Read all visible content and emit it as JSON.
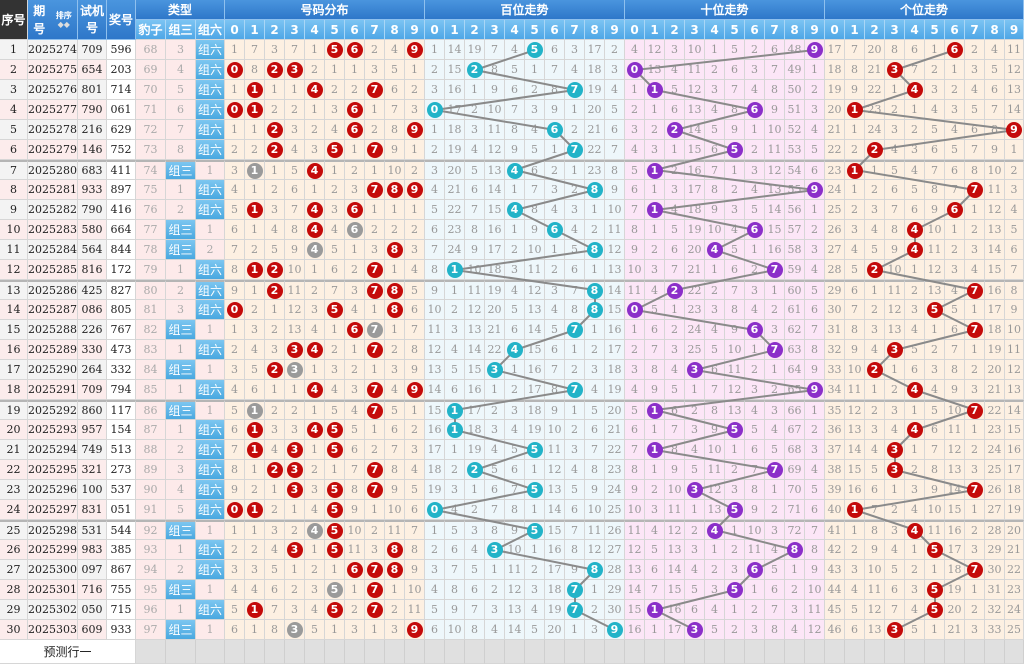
{
  "header": {
    "seq": "序号",
    "issue_a": "期",
    "issue_b": "号",
    "sort": "排序",
    "test_a": "试机",
    "test_b": "号",
    "draw": "奖号",
    "type": "类型",
    "type_cols": [
      "豹子",
      "组三",
      "组六"
    ],
    "dist": "号码分布",
    "hundreds": "百位走势",
    "tens": "十位走势",
    "units": "个位走势",
    "digits": [
      "0",
      "1",
      "2",
      "3",
      "4",
      "5",
      "6",
      "7",
      "8",
      "9"
    ]
  },
  "type_labels": {
    "zusan": "组三",
    "zuliu": "组六"
  },
  "rows": [
    {
      "seq": "1",
      "issue": "2025274",
      "test": "709",
      "draw": "596"
    },
    {
      "seq": "2",
      "issue": "2025275",
      "test": "654",
      "draw": "203"
    },
    {
      "seq": "3",
      "issue": "2025276",
      "test": "801",
      "draw": "714"
    },
    {
      "seq": "4",
      "issue": "2025277",
      "test": "790",
      "draw": "061"
    },
    {
      "seq": "5",
      "issue": "2025278",
      "test": "216",
      "draw": "629"
    },
    {
      "seq": "6",
      "issue": "2025279",
      "test": "146",
      "draw": "752"
    },
    {
      "seq": "7",
      "issue": "2025280",
      "test": "683",
      "draw": "411"
    },
    {
      "seq": "8",
      "issue": "2025281",
      "test": "933",
      "draw": "897"
    },
    {
      "seq": "9",
      "issue": "2025282",
      "test": "790",
      "draw": "416"
    },
    {
      "seq": "10",
      "issue": "2025283",
      "test": "580",
      "draw": "664"
    },
    {
      "seq": "11",
      "issue": "2025284",
      "test": "564",
      "draw": "844"
    },
    {
      "seq": "12",
      "issue": "2025285",
      "test": "816",
      "draw": "172"
    },
    {
      "seq": "13",
      "issue": "2025286",
      "test": "425",
      "draw": "827"
    },
    {
      "seq": "14",
      "issue": "2025287",
      "test": "086",
      "draw": "805"
    },
    {
      "seq": "15",
      "issue": "2025288",
      "test": "226",
      "draw": "767"
    },
    {
      "seq": "16",
      "issue": "2025289",
      "test": "330",
      "draw": "473"
    },
    {
      "seq": "17",
      "issue": "2025290",
      "test": "264",
      "draw": "332"
    },
    {
      "seq": "18",
      "issue": "2025291",
      "test": "709",
      "draw": "794"
    },
    {
      "seq": "19",
      "issue": "2025292",
      "test": "860",
      "draw": "117"
    },
    {
      "seq": "20",
      "issue": "2025293",
      "test": "957",
      "draw": "154"
    },
    {
      "seq": "21",
      "issue": "2025294",
      "test": "749",
      "draw": "513"
    },
    {
      "seq": "22",
      "issue": "2025295",
      "test": "321",
      "draw": "273"
    },
    {
      "seq": "23",
      "issue": "2025296",
      "test": "100",
      "draw": "537"
    },
    {
      "seq": "24",
      "issue": "2025297",
      "test": "831",
      "draw": "051"
    },
    {
      "seq": "25",
      "issue": "2025298",
      "test": "531",
      "draw": "544"
    },
    {
      "seq": "26",
      "issue": "2025299",
      "test": "983",
      "draw": "385"
    },
    {
      "seq": "27",
      "issue": "2025300",
      "test": "097",
      "draw": "867"
    },
    {
      "seq": "28",
      "issue": "2025301",
      "test": "716",
      "draw": "755"
    },
    {
      "seq": "29",
      "issue": "2025302",
      "test": "050",
      "draw": "715"
    },
    {
      "seq": "30",
      "issue": "2025303",
      "test": "609",
      "draw": "933"
    }
  ],
  "first_row_miss": {
    "baozi": 68,
    "zusan": 3,
    "dist": [
      1,
      7,
      3,
      7,
      1,
      null,
      null,
      2,
      4,
      null
    ],
    "hundreds": [
      1,
      14,
      19,
      7,
      4,
      null,
      6,
      3,
      17,
      2
    ],
    "tens": [
      4,
      12,
      3,
      10,
      1,
      5,
      2,
      6,
      48,
      null
    ],
    "units": [
      17,
      7,
      20,
      8,
      6,
      1,
      null,
      2,
      4,
      11
    ]
  },
  "footer": {
    "label": "预测行一"
  },
  "colors": {
    "dist_ball": "#c40a0a",
    "repeat_ball": "#9a9a9a",
    "hundreds_ball": "#22b3c8",
    "tens_ball": "#8b2fc9",
    "units_ball": "#c40a0a",
    "trend_line": "#8a8a8a"
  }
}
